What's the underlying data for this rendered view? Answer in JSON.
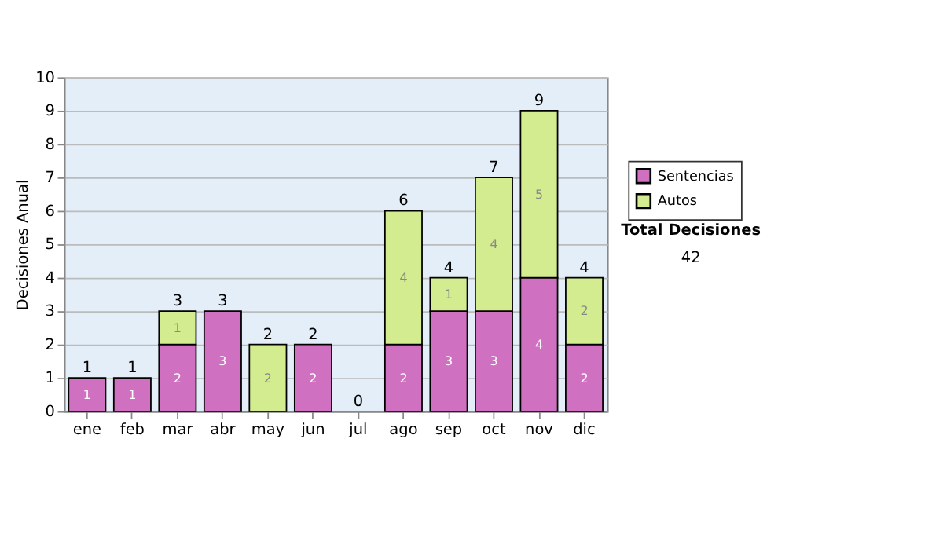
{
  "chart_data": {
    "type": "bar",
    "stacked": true,
    "ylabel": "Decisiones Anual",
    "categories": [
      "ene",
      "feb",
      "mar",
      "abr",
      "may",
      "jun",
      "jul",
      "ago",
      "sep",
      "oct",
      "nov",
      "dic"
    ],
    "series": [
      {
        "name": "Sentencias",
        "color": "#d070c0",
        "values": [
          1,
          1,
          2,
          3,
          0,
          2,
          0,
          2,
          3,
          3,
          4,
          2
        ],
        "value_labels": [
          "1",
          "1",
          "2",
          "3",
          null,
          "2",
          null,
          "2",
          "3",
          "3",
          "4",
          "2"
        ]
      },
      {
        "name": "Autos",
        "color": "#d4ec90",
        "values": [
          0,
          0,
          1,
          0,
          2,
          0,
          0,
          4,
          1,
          4,
          5,
          2
        ],
        "value_labels": [
          null,
          null,
          "1",
          null,
          "2",
          null,
          null,
          "4",
          "1",
          "4",
          "5",
          "2"
        ]
      }
    ],
    "totals": [
      "1",
      "1",
      "3",
      "3",
      "2",
      "2",
      "0",
      "6",
      "4",
      "7",
      "9",
      "4"
    ],
    "ylim": [
      0,
      10
    ],
    "yticks": [
      0,
      1,
      2,
      3,
      4,
      5,
      6,
      7,
      8,
      9,
      10
    ],
    "grid": "y",
    "legend": "right",
    "annotations": [
      "Total Decisiones",
      "42"
    ]
  }
}
